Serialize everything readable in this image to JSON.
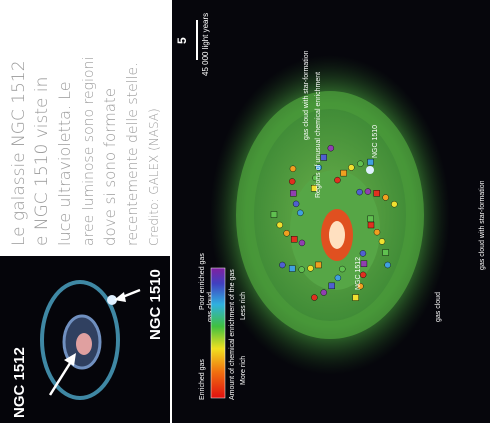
{
  "caption": {
    "lines": [
      "Le galassie NGC 1512",
      "e NGC 1510 viste in",
      "luce ultravioletta. Le",
      "aree luminose sono regioni",
      "dove si sono formate",
      "recentemente delle stelle."
    ],
    "credit": "Credito: GALEX (NASA)"
  },
  "inset": {
    "label_1512": "NGC 1512",
    "label_1510": "NGC 1510"
  },
  "main": {
    "scale_number": "5",
    "scale_text": "45 000 light years",
    "top_cloud": "gas cloud with star-formation",
    "regions": "Regions of unusual chemical enrichment",
    "ngc1510": "NGC 1510",
    "ngc1512": "NGC 1512",
    "left_cloud": "gas cloud",
    "bottom_cloud": "gas cloud",
    "right_cloud": "gas cloud with star-formation",
    "colorbar": {
      "enriched": "Enriched gas",
      "more": "More rich",
      "less": "Less rich",
      "poor": "Poor enriched gas",
      "title": "Amount of chemical enrichment of the gas"
    }
  }
}
